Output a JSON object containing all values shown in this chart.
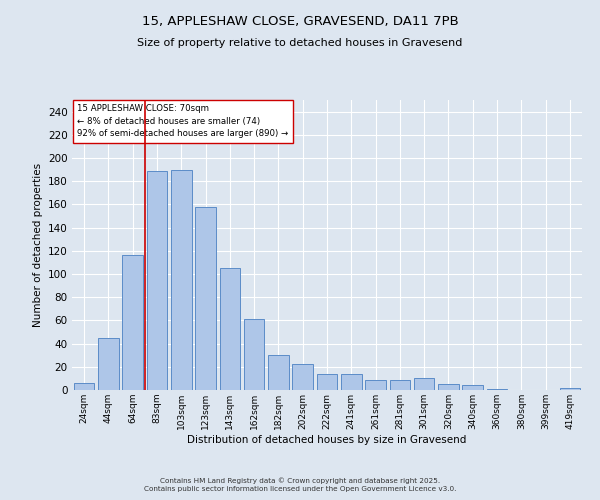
{
  "title_line1": "15, APPLESHAW CLOSE, GRAVESEND, DA11 7PB",
  "title_line2": "Size of property relative to detached houses in Gravesend",
  "xlabel": "Distribution of detached houses by size in Gravesend",
  "ylabel": "Number of detached properties",
  "bar_labels": [
    "24sqm",
    "44sqm",
    "64sqm",
    "83sqm",
    "103sqm",
    "123sqm",
    "143sqm",
    "162sqm",
    "182sqm",
    "202sqm",
    "222sqm",
    "241sqm",
    "261sqm",
    "281sqm",
    "301sqm",
    "320sqm",
    "340sqm",
    "360sqm",
    "380sqm",
    "399sqm",
    "419sqm"
  ],
  "bar_values": [
    6,
    45,
    116,
    189,
    190,
    158,
    105,
    61,
    30,
    22,
    14,
    14,
    9,
    9,
    10,
    5,
    4,
    1,
    0,
    0,
    2
  ],
  "bar_color": "#aec6e8",
  "bar_edge_color": "#5b8cc8",
  "bg_color": "#dde6f0",
  "grid_color": "#ffffff",
  "vline_color": "#cc0000",
  "annotation_title": "15 APPLESHAW CLOSE: 70sqm",
  "annotation_line1": "← 8% of detached houses are smaller (74)",
  "annotation_line2": "92% of semi-detached houses are larger (890) →",
  "annotation_box_color": "#ffffff",
  "annotation_box_edge": "#cc0000",
  "ylim": [
    0,
    250
  ],
  "yticks": [
    0,
    20,
    40,
    60,
    80,
    100,
    120,
    140,
    160,
    180,
    200,
    220,
    240
  ],
  "footer_line1": "Contains HM Land Registry data © Crown copyright and database right 2025.",
  "footer_line2": "Contains public sector information licensed under the Open Government Licence v3.0."
}
